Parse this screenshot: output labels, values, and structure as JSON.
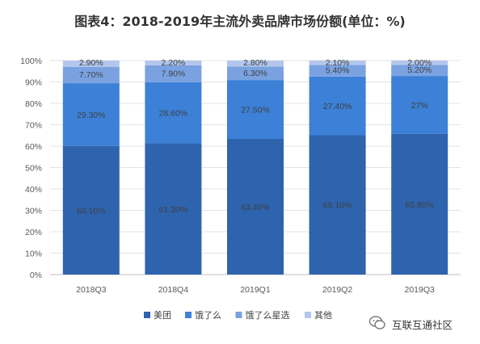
{
  "chart_data": {
    "type": "bar",
    "stacked": true,
    "title": "图表4：2018-2019年主流外卖品牌市场份额(单位：%)",
    "categories": [
      "2018Q3",
      "2018Q4",
      "2019Q1",
      "2019Q2",
      "2019Q3"
    ],
    "series": [
      {
        "name": "美团",
        "color": "#2E63AE",
        "values": [
          60.1,
          61.3,
          63.4,
          65.1,
          65.8
        ],
        "labels": [
          "60.10%",
          "61.30%",
          "63.40%",
          "65.10%",
          "65.80%"
        ]
      },
      {
        "name": "饿了么",
        "color": "#3C80D7",
        "values": [
          29.3,
          28.6,
          27.5,
          27.4,
          27
        ],
        "labels": [
          "29.30%",
          "28.60%",
          "27.50%",
          "27.40%",
          "27%"
        ]
      },
      {
        "name": "饿了么星选",
        "color": "#7AA2E1",
        "values": [
          7.7,
          7.9,
          6.3,
          5.4,
          5.2
        ],
        "labels": [
          "7.70%",
          "7.90%",
          "6.30%",
          "5.40%",
          "5.20%"
        ]
      },
      {
        "name": "其他",
        "color": "#B3C6EC",
        "values": [
          2.9,
          2.2,
          2.8,
          2.1,
          2.0
        ],
        "labels": [
          "2.90%",
          "2.20%",
          "2.80%",
          "2.10%",
          "2.00%"
        ]
      }
    ],
    "yticks": [
      "0%",
      "10%",
      "20%",
      "30%",
      "40%",
      "50%",
      "60%",
      "70%",
      "80%",
      "90%",
      "100%"
    ],
    "ylim": [
      0,
      100
    ],
    "grid": true,
    "legend_position": "bottom"
  },
  "watermark": {
    "text": "互联互通社区"
  }
}
